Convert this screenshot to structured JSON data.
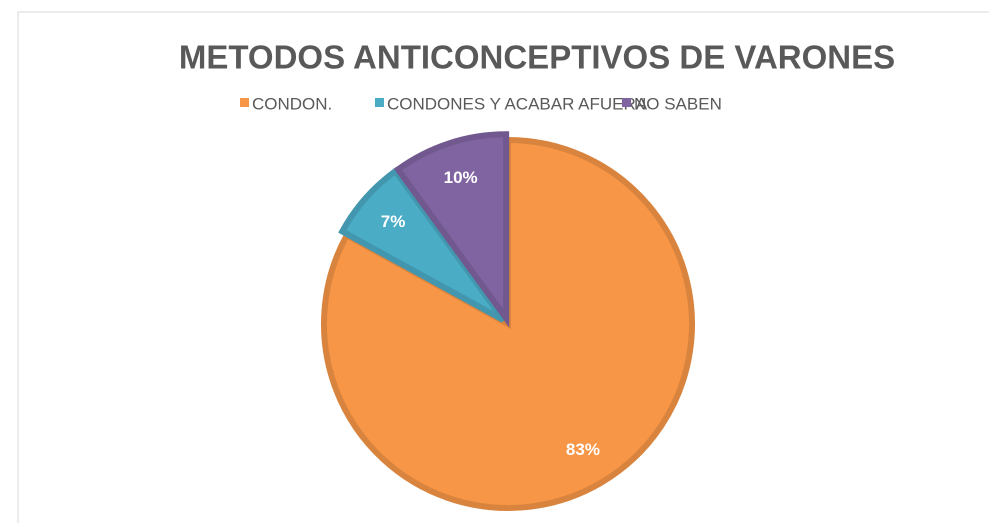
{
  "chart_data": {
    "type": "pie",
    "title": "METODOS ANTICONCEPTIVOS DE VARONES",
    "categories": [
      "CONDON.",
      "CONDONES Y ACABAR AFUERA",
      "NO SABEN"
    ],
    "values": [
      83,
      7,
      10
    ],
    "value_labels": [
      "83%",
      "7%",
      "10%"
    ],
    "colors": [
      "#f79646",
      "#4bacc6",
      "#8064a2"
    ],
    "legend": "top"
  }
}
